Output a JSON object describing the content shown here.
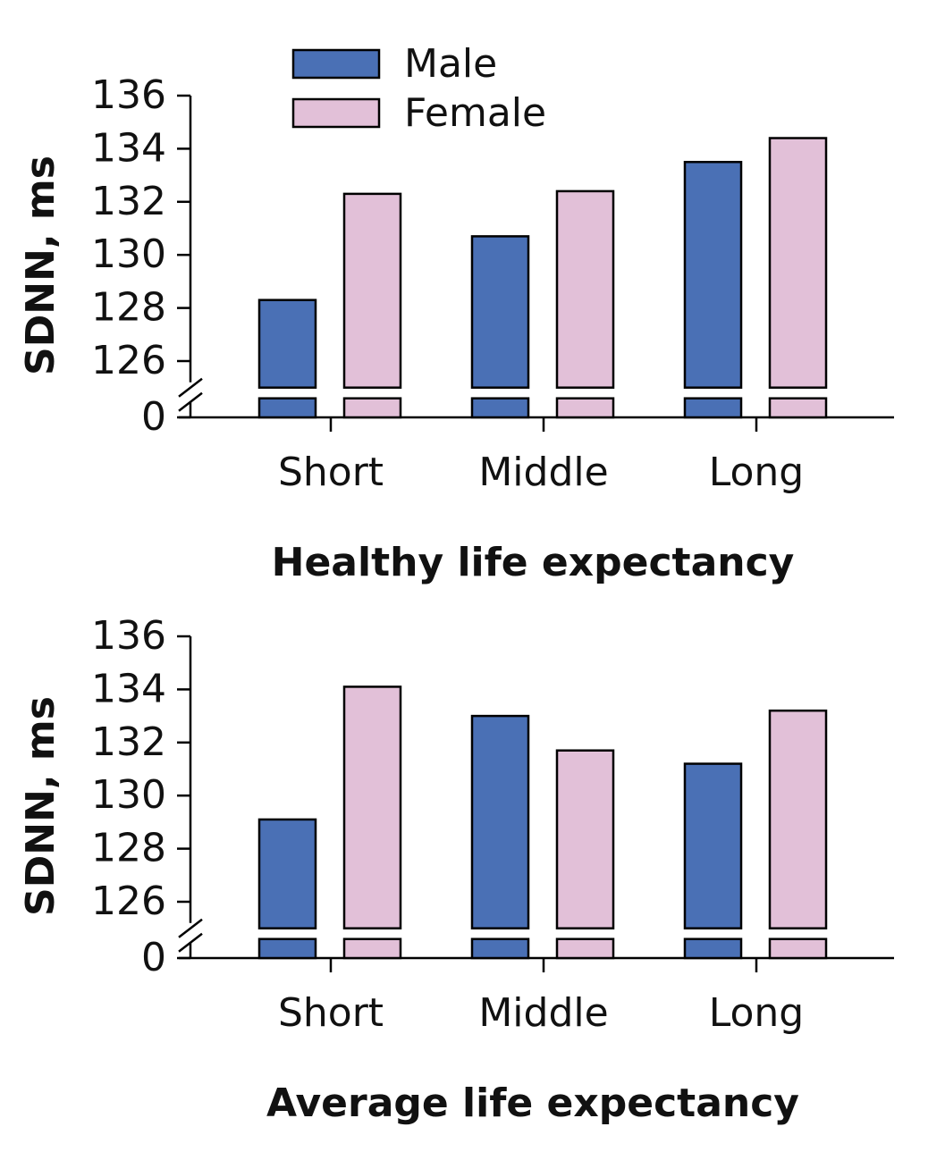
{
  "chart_data": [
    {
      "type": "bar",
      "xlabel": "Healthy life expectancy",
      "ylabel": "SDNN, ms",
      "categories": [
        "Short",
        "Middle",
        "Long"
      ],
      "series": [
        {
          "name": "Male",
          "color": "#4a70b5",
          "values": [
            128.3,
            130.7,
            133.5
          ]
        },
        {
          "name": "Female",
          "color": "#e2c0d8",
          "values": [
            132.3,
            132.4,
            134.4
          ]
        }
      ],
      "ylim": [
        0,
        136
      ],
      "ybreak": [
        0,
        125
      ],
      "yticks": [
        0,
        126,
        128,
        130,
        132,
        134,
        136
      ],
      "legend": "upper left"
    },
    {
      "type": "bar",
      "xlabel": "Average life expectancy",
      "ylabel": "SDNN, ms",
      "categories": [
        "Short",
        "Middle",
        "Long"
      ],
      "series": [
        {
          "name": "Male",
          "color": "#4a70b5",
          "values": [
            129.1,
            133.0,
            131.2
          ]
        },
        {
          "name": "Female",
          "color": "#e2c0d8",
          "values": [
            134.1,
            131.7,
            133.2
          ]
        }
      ],
      "ylim": [
        0,
        136
      ],
      "ybreak": [
        0,
        125
      ],
      "yticks": [
        0,
        126,
        128,
        130,
        132,
        134,
        136
      ]
    }
  ]
}
